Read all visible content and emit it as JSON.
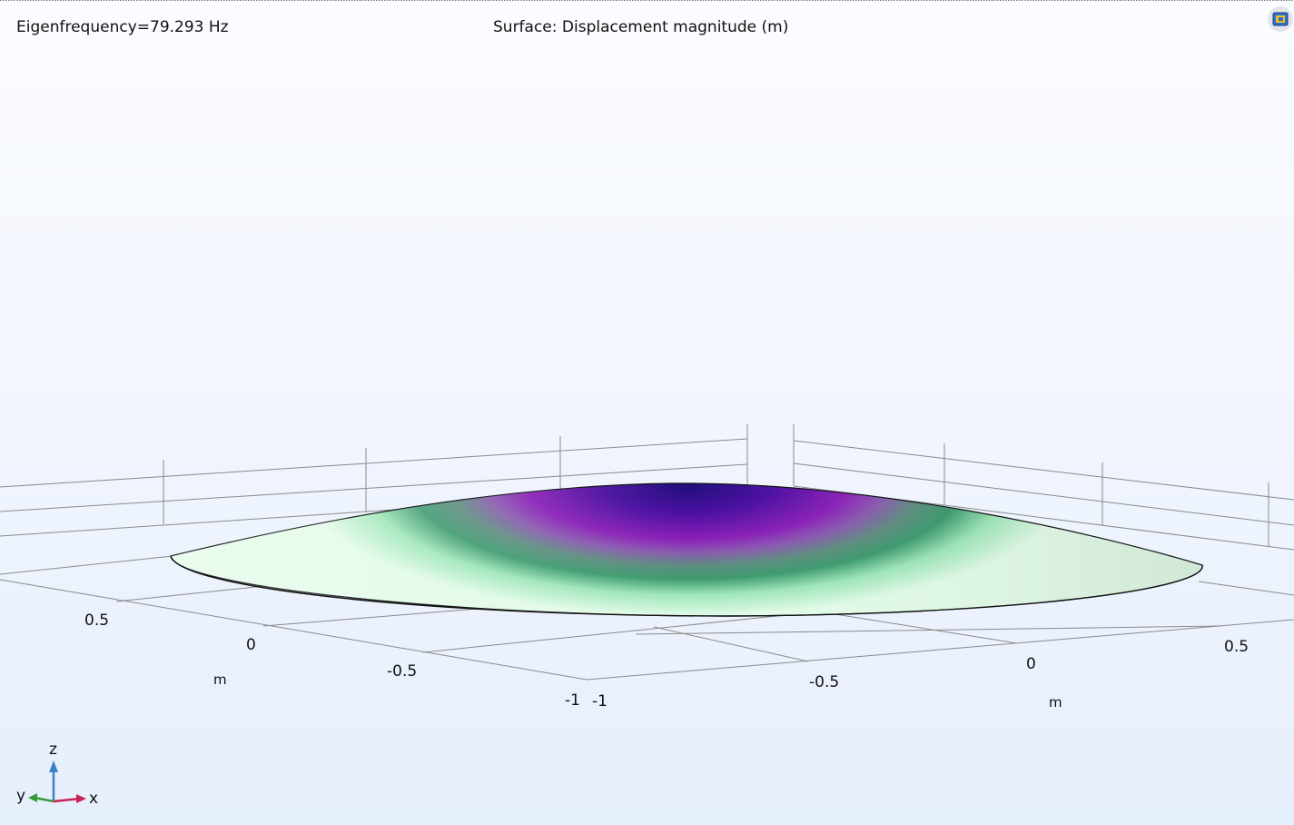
{
  "plot": {
    "eigenfrequency_label": "Eigenfrequency=79.293 Hz",
    "surface_label": "Surface: Displacement magnitude (m)"
  },
  "axes": {
    "left_ticks": [
      "0.5",
      "0",
      "-0.5",
      "-1"
    ],
    "right_ticks": [
      "-1",
      "-0.5",
      "0",
      "0.5"
    ],
    "left_unit": "m",
    "right_unit": "m"
  },
  "triad": {
    "z": "z",
    "y": "y",
    "x": "x"
  },
  "colors": {
    "colormap": [
      "#1e0f7a",
      "#7814a8",
      "#8a20b8",
      "#6b6f8f",
      "#3c9a6e",
      "#9ee6b8",
      "#e2fbe8"
    ],
    "grid": "#888888",
    "axis_x": "#cc2255",
    "axis_y": "#3a9a3a",
    "axis_z": "#3d7fc4"
  },
  "icons": {
    "export": "image-export-icon"
  }
}
